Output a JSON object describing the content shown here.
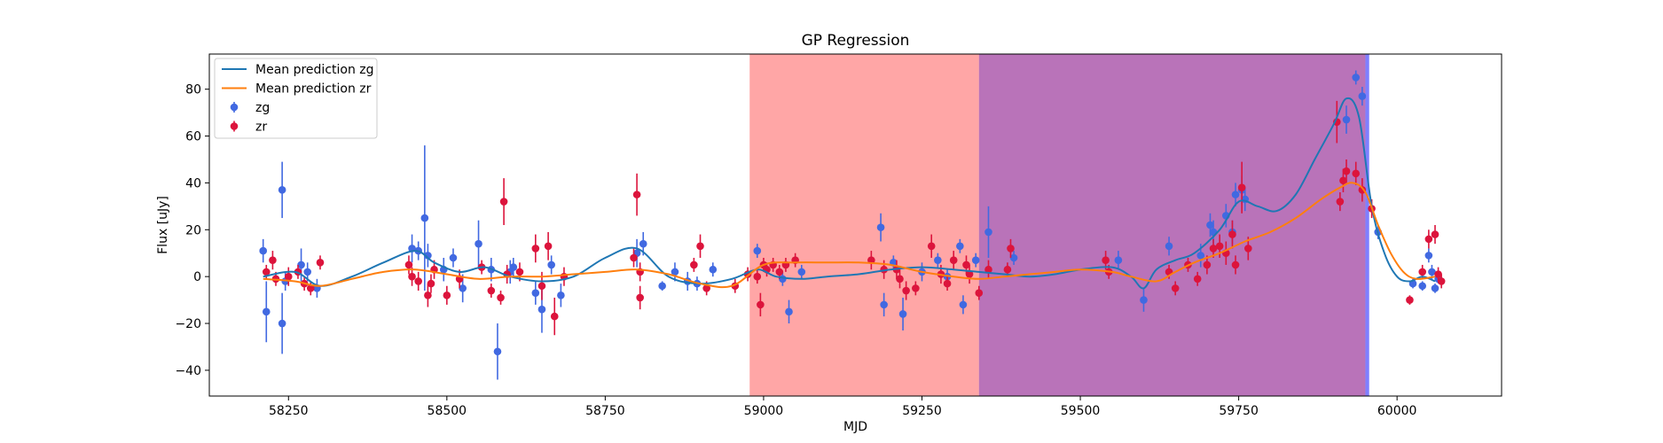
{
  "chart_data": {
    "type": "scatter",
    "title": "GP Regression",
    "xlabel": "MJD",
    "ylabel": "Flux [uJy]",
    "xlim": [
      58125,
      60165
    ],
    "ylim": [
      -51,
      95
    ],
    "xticks": [
      58250,
      58500,
      58750,
      59000,
      59250,
      59500,
      59750,
      60000
    ],
    "yticks": [
      -40,
      -20,
      0,
      20,
      40,
      60,
      80
    ],
    "grid": false,
    "legend_position": "top-left",
    "shaded_regions": [
      {
        "x0": 58978,
        "x1": 59340,
        "color": "#ff0000",
        "opacity": 0.35
      },
      {
        "x0": 59340,
        "x1": 59950,
        "color": "#800080",
        "opacity": 0.55
      },
      {
        "x0": 59950,
        "x1": 59956,
        "color": "#0000ff",
        "opacity": 0.5
      }
    ],
    "series": [
      {
        "name": "Mean prediction zg",
        "kind": "line",
        "color": "#1f77b4",
        "x": [
          58210,
          58260,
          58300,
          58350,
          58400,
          58450,
          58480,
          58520,
          58560,
          58600,
          58650,
          58700,
          58750,
          58800,
          58850,
          58900,
          58950,
          58990,
          59020,
          59060,
          59100,
          59150,
          59200,
          59250,
          59300,
          59340,
          59380,
          59420,
          59460,
          59500,
          59550,
          59580,
          59600,
          59620,
          59650,
          59680,
          59720,
          59750,
          59780,
          59810,
          59840,
          59870,
          59900,
          59920,
          59940,
          59960,
          59980,
          60000,
          60020,
          60040,
          60060
        ],
        "y": [
          0,
          2,
          -4,
          0,
          6,
          11,
          6,
          2,
          4,
          0,
          -2,
          0,
          8,
          12,
          0,
          -3,
          -1,
          3,
          0,
          -1,
          0,
          1,
          3,
          4,
          3,
          2,
          1,
          0,
          1,
          3,
          4,
          0,
          -5,
          3,
          7,
          10,
          20,
          32,
          30,
          28,
          35,
          50,
          65,
          76,
          68,
          30,
          10,
          0,
          -2,
          0,
          -2
        ]
      },
      {
        "name": "Mean prediction zr",
        "kind": "line",
        "color": "#ff7f0e",
        "x": [
          58210,
          58260,
          58300,
          58350,
          58400,
          58450,
          58500,
          58550,
          58600,
          58650,
          58700,
          58750,
          58800,
          58850,
          58900,
          58950,
          59000,
          59050,
          59100,
          59150,
          59200,
          59250,
          59300,
          59340,
          59380,
          59420,
          59460,
          59500,
          59550,
          59580,
          59620,
          59650,
          59680,
          59720,
          59760,
          59800,
          59840,
          59880,
          59910,
          59930,
          59950,
          59970,
          59990,
          60010,
          60030,
          60060
        ],
        "y": [
          -1,
          -2,
          -4,
          -1,
          2,
          3,
          1,
          -1,
          0,
          0,
          1,
          2,
          3,
          1,
          -3,
          -4,
          5,
          6,
          6,
          6,
          5,
          2,
          0,
          -1,
          0,
          1,
          2,
          3,
          2,
          0,
          -2,
          2,
          6,
          10,
          15,
          19,
          25,
          33,
          38,
          40,
          36,
          22,
          10,
          2,
          -1,
          0
        ]
      },
      {
        "name": "zg",
        "kind": "errorbar",
        "color": "#4169e1",
        "points": [
          [
            58210,
            11,
            5
          ],
          [
            58215,
            -15,
            13
          ],
          [
            58240,
            37,
            12
          ],
          [
            58240,
            -20,
            13
          ],
          [
            58245,
            -2,
            4
          ],
          [
            58270,
            5,
            7
          ],
          [
            58280,
            2,
            4
          ],
          [
            58295,
            -5,
            4
          ],
          [
            58445,
            12,
            6
          ],
          [
            58455,
            11,
            4
          ],
          [
            58465,
            25,
            31
          ],
          [
            58470,
            9,
            5
          ],
          [
            58495,
            3,
            5
          ],
          [
            58510,
            8,
            4
          ],
          [
            58525,
            -5,
            6
          ],
          [
            58550,
            14,
            10
          ],
          [
            58570,
            3,
            5
          ],
          [
            58580,
            -32,
            12
          ],
          [
            58600,
            2,
            5
          ],
          [
            58605,
            4,
            4
          ],
          [
            58640,
            -7,
            5
          ],
          [
            58650,
            -14,
            10
          ],
          [
            58665,
            5,
            4
          ],
          [
            58680,
            -8,
            5
          ],
          [
            58800,
            10,
            6
          ],
          [
            58810,
            14,
            5
          ],
          [
            58840,
            -4,
            2
          ],
          [
            58860,
            2,
            4
          ],
          [
            58880,
            -2,
            4
          ],
          [
            58895,
            -3,
            3
          ],
          [
            58920,
            3,
            3
          ],
          [
            58990,
            11,
            3
          ],
          [
            59030,
            -1,
            3
          ],
          [
            59040,
            -15,
            5
          ],
          [
            59060,
            2,
            3
          ],
          [
            59185,
            21,
            6
          ],
          [
            59190,
            -12,
            5
          ],
          [
            59205,
            6,
            3
          ],
          [
            59220,
            -16,
            7
          ],
          [
            59250,
            2,
            4
          ],
          [
            59275,
            7,
            3
          ],
          [
            59290,
            0,
            3
          ],
          [
            59310,
            13,
            3
          ],
          [
            59315,
            -12,
            4
          ],
          [
            59335,
            7,
            3
          ],
          [
            59355,
            19,
            11
          ],
          [
            59395,
            8,
            3
          ],
          [
            59560,
            7,
            4
          ],
          [
            59600,
            -10,
            5
          ],
          [
            59640,
            13,
            4
          ],
          [
            59690,
            9,
            5
          ],
          [
            59705,
            22,
            5
          ],
          [
            59710,
            19,
            5
          ],
          [
            59730,
            26,
            5
          ],
          [
            59740,
            19,
            5
          ],
          [
            59745,
            35,
            5
          ],
          [
            59755,
            37,
            6
          ],
          [
            59760,
            33,
            5
          ],
          [
            59920,
            67,
            6
          ],
          [
            59935,
            85,
            3
          ],
          [
            59945,
            77,
            4
          ],
          [
            59970,
            19,
            3
          ],
          [
            60025,
            -3,
            2
          ],
          [
            60040,
            -4,
            2
          ],
          [
            60050,
            9,
            3
          ],
          [
            60055,
            2,
            3
          ],
          [
            60060,
            -5,
            2
          ],
          [
            60065,
            -1,
            2
          ]
        ]
      },
      {
        "name": "zr",
        "kind": "errorbar",
        "color": "#dc143c",
        "points": [
          [
            58215,
            2,
            3
          ],
          [
            58225,
            7,
            4
          ],
          [
            58230,
            -1,
            3
          ],
          [
            58250,
            0,
            4
          ],
          [
            58265,
            2,
            3
          ],
          [
            58275,
            -3,
            3
          ],
          [
            58285,
            -5,
            3
          ],
          [
            58300,
            6,
            3
          ],
          [
            58440,
            5,
            4
          ],
          [
            58445,
            0,
            4
          ],
          [
            58455,
            -2,
            4
          ],
          [
            58470,
            -8,
            5
          ],
          [
            58475,
            -3,
            4
          ],
          [
            58480,
            3,
            4
          ],
          [
            58500,
            -8,
            4
          ],
          [
            58520,
            -1,
            4
          ],
          [
            58555,
            4,
            3
          ],
          [
            58570,
            -6,
            3
          ],
          [
            58585,
            -9,
            3
          ],
          [
            58590,
            32,
            10
          ],
          [
            58595,
            1,
            4
          ],
          [
            58615,
            2,
            4
          ],
          [
            58640,
            12,
            6
          ],
          [
            58650,
            -4,
            6
          ],
          [
            58660,
            13,
            6
          ],
          [
            58670,
            -17,
            8
          ],
          [
            58685,
            0,
            4
          ],
          [
            58795,
            8,
            4
          ],
          [
            58800,
            35,
            9
          ],
          [
            58805,
            -9,
            5
          ],
          [
            58805,
            2,
            4
          ],
          [
            58890,
            5,
            3
          ],
          [
            58900,
            13,
            5
          ],
          [
            58910,
            -5,
            3
          ],
          [
            58955,
            -4,
            3
          ],
          [
            58975,
            1,
            3
          ],
          [
            58990,
            0,
            3
          ],
          [
            58995,
            -12,
            5
          ],
          [
            59000,
            5,
            3
          ],
          [
            59005,
            3,
            3
          ],
          [
            59015,
            5,
            3
          ],
          [
            59025,
            2,
            3
          ],
          [
            59035,
            5,
            3
          ],
          [
            59050,
            7,
            3
          ],
          [
            59170,
            7,
            4
          ],
          [
            59190,
            3,
            4
          ],
          [
            59210,
            3,
            4
          ],
          [
            59215,
            -1,
            4
          ],
          [
            59225,
            -6,
            4
          ],
          [
            59240,
            -5,
            3
          ],
          [
            59265,
            13,
            5
          ],
          [
            59280,
            1,
            4
          ],
          [
            59290,
            -3,
            3
          ],
          [
            59300,
            7,
            4
          ],
          [
            59320,
            5,
            4
          ],
          [
            59325,
            1,
            4
          ],
          [
            59340,
            -7,
            3
          ],
          [
            59355,
            3,
            4
          ],
          [
            59385,
            3,
            3
          ],
          [
            59390,
            12,
            4
          ],
          [
            59540,
            7,
            4
          ],
          [
            59545,
            2,
            3
          ],
          [
            59640,
            2,
            3
          ],
          [
            59650,
            -5,
            3
          ],
          [
            59670,
            5,
            3
          ],
          [
            59685,
            -1,
            3
          ],
          [
            59700,
            5,
            4
          ],
          [
            59710,
            12,
            4
          ],
          [
            59720,
            13,
            5
          ],
          [
            59730,
            10,
            5
          ],
          [
            59740,
            18,
            6
          ],
          [
            59745,
            5,
            4
          ],
          [
            59755,
            38,
            11
          ],
          [
            59765,
            12,
            5
          ],
          [
            59905,
            66,
            9
          ],
          [
            59910,
            32,
            4
          ],
          [
            59915,
            41,
            5
          ],
          [
            59920,
            45,
            5
          ],
          [
            59935,
            44,
            5
          ],
          [
            59945,
            37,
            5
          ],
          [
            59960,
            29,
            4
          ],
          [
            60020,
            -10,
            2
          ],
          [
            60040,
            2,
            3
          ],
          [
            60050,
            16,
            4
          ],
          [
            60060,
            18,
            4
          ],
          [
            60065,
            1,
            3
          ],
          [
            60070,
            -2,
            3
          ]
        ]
      }
    ]
  }
}
